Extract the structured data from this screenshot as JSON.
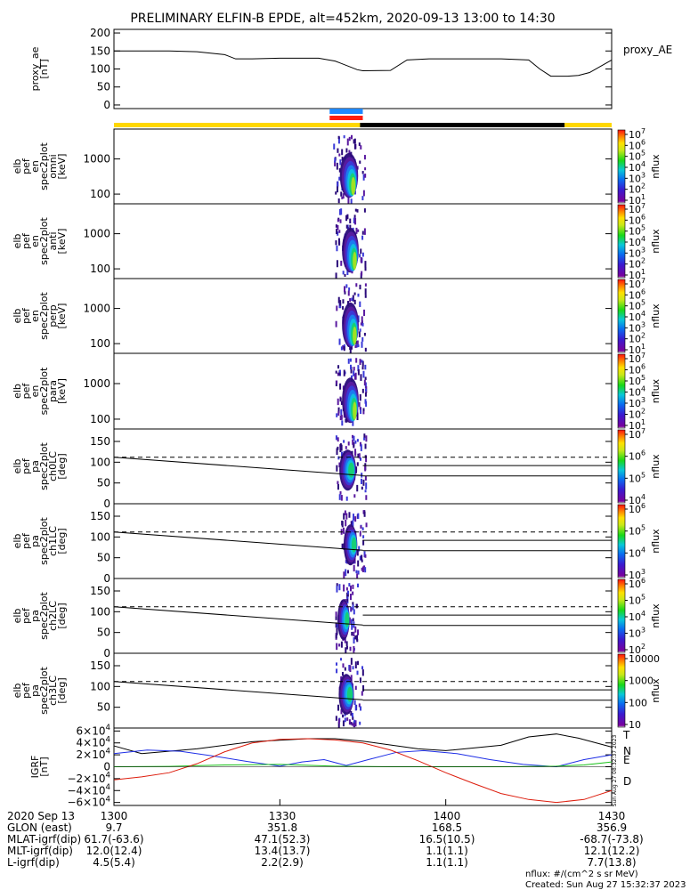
{
  "title": "PRELIMINARY ELFIN-B EPDE, alt=452km, 2020-09-13 13:00 to 14:30",
  "footer": {
    "units": "nflux: #/(cm^2 s sr MeV)",
    "created": "Created: Sun Aug 27 15:32:37 2023",
    "stamp": "Sun Aug 27 08:32:37 2023"
  },
  "time_axis": {
    "ticks": [
      "1300",
      "1330",
      "1400",
      "1430"
    ],
    "tick_minutes": [
      0,
      30,
      60,
      90
    ]
  },
  "ephemeris": [
    {
      "label": "2020 Sep 13",
      "values": [
        "1300",
        "1330",
        "1400",
        "1430"
      ]
    },
    {
      "label": "GLON (east)",
      "values": [
        "9.7",
        "351.8",
        "168.5",
        "356.9"
      ]
    },
    {
      "label": "MLAT-igrf(dip)",
      "values": [
        "61.7(-63.6)",
        "47.1(52.3)",
        "16.5(10.5)",
        "-68.7(-73.8)"
      ]
    },
    {
      "label": "MLT-igrf(dip)",
      "values": [
        "12.0(12.4)",
        "13.4(13.7)",
        "1.1(1.1)",
        "12.1(12.2)"
      ]
    },
    {
      "label": "L-igrf(dip)",
      "values": [
        "4.5(5.4)",
        "2.2(2.9)",
        "1.1(1.1)",
        "7.7(13.8)"
      ]
    }
  ],
  "status_bars": {
    "blue_minutes": [
      39,
      45
    ],
    "red_minutes": [
      39,
      45
    ],
    "yellow_black": [
      {
        "color": "#ffd800",
        "range": [
          0,
          44.5
        ]
      },
      {
        "color": "#000000",
        "range": [
          44.5,
          81.5
        ]
      },
      {
        "color": "#ffd800",
        "range": [
          81.5,
          90
        ]
      }
    ]
  },
  "chart_data": [
    {
      "type": "line",
      "ylabel": "proxy_ae [nT]",
      "legend": "proxy_AE",
      "ylim": [
        -10,
        210
      ],
      "yticks": [
        "200",
        "150",
        "100",
        "50",
        "0"
      ],
      "x": [
        0,
        10,
        15,
        20,
        22,
        25,
        30,
        37,
        40,
        44,
        45,
        50,
        53,
        57,
        60,
        65,
        70,
        75,
        77,
        79,
        82,
        84,
        86,
        90
      ],
      "values": [
        150,
        150,
        148,
        140,
        128,
        128,
        130,
        130,
        122,
        98,
        95,
        96,
        125,
        128,
        128,
        128,
        128,
        125,
        100,
        80,
        80,
        82,
        90,
        125
      ]
    },
    {
      "type": "heatmap",
      "ylabel": "elb pef en spec2plot omni [keV]",
      "yscale": "log",
      "yticks": [
        "1000",
        "100"
      ],
      "zlabel": "nflux",
      "zticks": [
        "10^7",
        "10^6",
        "10^5",
        "10^4",
        "10^3",
        "10^2",
        "10^1"
      ],
      "time_range_minutes": [
        39.5,
        45.5
      ]
    },
    {
      "type": "heatmap",
      "ylabel": "elb pef en spec2plot anti [keV]",
      "yscale": "log",
      "yticks": [
        "1000",
        "100"
      ],
      "zlabel": "nflux",
      "zticks": [
        "10^7",
        "10^6",
        "10^5",
        "10^4",
        "10^3",
        "10^2",
        "10^1"
      ],
      "time_range_minutes": [
        40,
        45.5
      ]
    },
    {
      "type": "heatmap",
      "ylabel": "elb pef en spec2plot perp [keV]",
      "yscale": "log",
      "yticks": [
        "1000",
        "100"
      ],
      "zlabel": "nflux",
      "zticks": [
        "10^7",
        "10^6",
        "10^5",
        "10^4",
        "10^3",
        "10^2",
        "10^1"
      ],
      "time_range_minutes": [
        40,
        45.5
      ]
    },
    {
      "type": "heatmap",
      "ylabel": "elb pef en spec2plot para [keV]",
      "yscale": "log",
      "yticks": [
        "1000",
        "100"
      ],
      "zlabel": "nflux",
      "zticks": [
        "10^7",
        "10^6",
        "10^5",
        "10^4",
        "10^3",
        "10^2",
        "10^1"
      ],
      "time_range_minutes": [
        40,
        45.5
      ]
    },
    {
      "type": "heatmap",
      "ylabel": "elb pef pa spec2plot ch0LC [deg]",
      "yticks": [
        "150",
        "100",
        "50",
        "0"
      ],
      "ylim": [
        0,
        180
      ],
      "zlabel": "nflux",
      "zticks": [
        "10^7",
        "10^6",
        "10^5",
        "10^4"
      ],
      "dashed_level": 112,
      "solid_levels": [
        92,
        67
      ],
      "slant_line": {
        "x": [
          0,
          45
        ],
        "y": [
          112,
          68
        ]
      },
      "time_range_minutes": [
        40,
        45.5
      ]
    },
    {
      "type": "heatmap",
      "ylabel": "elb pef pa spec2plot ch1LC [deg]",
      "yticks": [
        "150",
        "100",
        "50",
        "0"
      ],
      "ylim": [
        0,
        180
      ],
      "zlabel": "nflux",
      "zticks": [
        "10^6",
        "10^5",
        "10^4",
        "10^3"
      ],
      "dashed_level": 112,
      "solid_levels": [
        92,
        67
      ],
      "slant_line": {
        "x": [
          0,
          45
        ],
        "y": [
          112,
          68
        ]
      },
      "time_range_minutes": [
        41,
        45.5
      ]
    },
    {
      "type": "heatmap",
      "ylabel": "elb pef pa spec2plot ch2LC [deg]",
      "yticks": [
        "150",
        "100",
        "50",
        "0"
      ],
      "ylim": [
        0,
        180
      ],
      "zlabel": "nflux",
      "zticks": [
        "10^6",
        "10^5",
        "10^4",
        "10^3",
        "10^2"
      ],
      "dashed_level": 112,
      "solid_levels": [
        92,
        67
      ],
      "slant_line": {
        "x": [
          0,
          45
        ],
        "y": [
          112,
          68
        ]
      },
      "time_range_minutes": [
        40,
        44
      ]
    },
    {
      "type": "heatmap",
      "ylabel": "elb pef pa spec2plot ch3LC [deg]",
      "yticks": [
        "150",
        "100",
        "50"
      ],
      "ylim": [
        0,
        180
      ],
      "zlabel": "nflux",
      "zticks": [
        "10000",
        "1000",
        "100",
        "10"
      ],
      "dashed_level": 112,
      "solid_levels": [
        92,
        67
      ],
      "slant_line": {
        "x": [
          0,
          45
        ],
        "y": [
          112,
          68
        ]
      },
      "time_range_minutes": [
        40,
        45
      ]
    },
    {
      "type": "line",
      "ylabel": "IGRF [nT]",
      "ylim": [
        -65000,
        65000
      ],
      "yticks": [
        "6×10^4",
        "4×10^4",
        "2×10^4",
        "0",
        "−2×10^4",
        "−4×10^4",
        "−6×10^4"
      ],
      "ytick_values": [
        60000,
        40000,
        20000,
        0,
        -20000,
        -40000,
        -60000
      ],
      "series": [
        {
          "name": "T",
          "color": "#000000",
          "x": [
            0,
            5,
            15,
            25,
            35,
            40,
            45,
            55,
            60,
            70,
            75,
            80,
            84,
            90
          ],
          "values": [
            35000,
            22000,
            30000,
            42000,
            47000,
            47000,
            43000,
            30000,
            27000,
            36000,
            50000,
            55000,
            48000,
            33000
          ]
        },
        {
          "name": "N",
          "color": "#1e2ee6",
          "x": [
            0,
            6,
            12,
            18,
            24,
            30,
            34,
            38,
            42,
            46,
            51,
            56,
            62,
            68,
            74,
            80,
            85,
            90
          ],
          "values": [
            22000,
            28000,
            26000,
            18000,
            9000,
            1000,
            8000,
            12000,
            2000,
            12000,
            24000,
            27000,
            22000,
            12000,
            4000,
            0,
            12000,
            20000
          ]
        },
        {
          "name": "E",
          "color": "#18c018",
          "x": [
            0,
            10,
            20,
            30,
            40,
            50,
            60,
            70,
            80,
            85,
            88,
            90
          ],
          "values": [
            0,
            500,
            3000,
            4000,
            1000,
            0,
            0,
            0,
            1000,
            3000,
            6000,
            8000
          ]
        },
        {
          "name": "D",
          "color": "#dd1c0c",
          "x": [
            0,
            5,
            10,
            15,
            20,
            25,
            30,
            35,
            40,
            45,
            50,
            55,
            60,
            65,
            70,
            75,
            80,
            85,
            90
          ],
          "values": [
            -22000,
            -17000,
            -10000,
            5000,
            25000,
            40000,
            46000,
            47000,
            45000,
            40000,
            28000,
            10000,
            -10000,
            -28000,
            -45000,
            -55000,
            -60000,
            -55000,
            -40000
          ]
        }
      ]
    }
  ]
}
